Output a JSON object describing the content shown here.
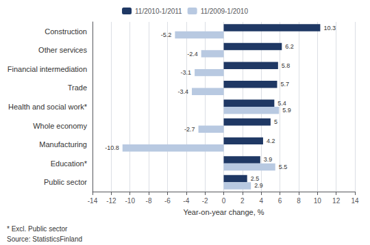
{
  "chart_data": {
    "type": "bar",
    "orientation": "horizontal",
    "categories": [
      "Construction",
      "Other services",
      "Financial intermediation",
      "Trade",
      "Health and social work*",
      "Whole economy",
      "Manufacturing",
      "Education*",
      "Public sector"
    ],
    "series": [
      {
        "name": "11/2010-1/2011",
        "color": "#1F3864",
        "values": [
          10.3,
          6.2,
          5.8,
          5.7,
          5.4,
          5.0,
          4.2,
          3.9,
          2.5
        ]
      },
      {
        "name": "11/2009-1/2010",
        "color": "#B8C9E1",
        "values": [
          -5.2,
          -2.4,
          -3.1,
          -3.4,
          5.9,
          -2.7,
          -10.8,
          5.5,
          2.9
        ]
      }
    ],
    "xlabel": "Year-on-year change, %",
    "xlim": [
      -14,
      14
    ],
    "xticks": [
      -14,
      -12,
      -10,
      -8,
      -6,
      -4,
      -2,
      0,
      2,
      4,
      6,
      8,
      10,
      12,
      14
    ],
    "grid": true,
    "legend": "top",
    "data_labels": true,
    "annotations": [
      "* Excl. Public sector",
      "Source: StatisticsFinland"
    ]
  }
}
